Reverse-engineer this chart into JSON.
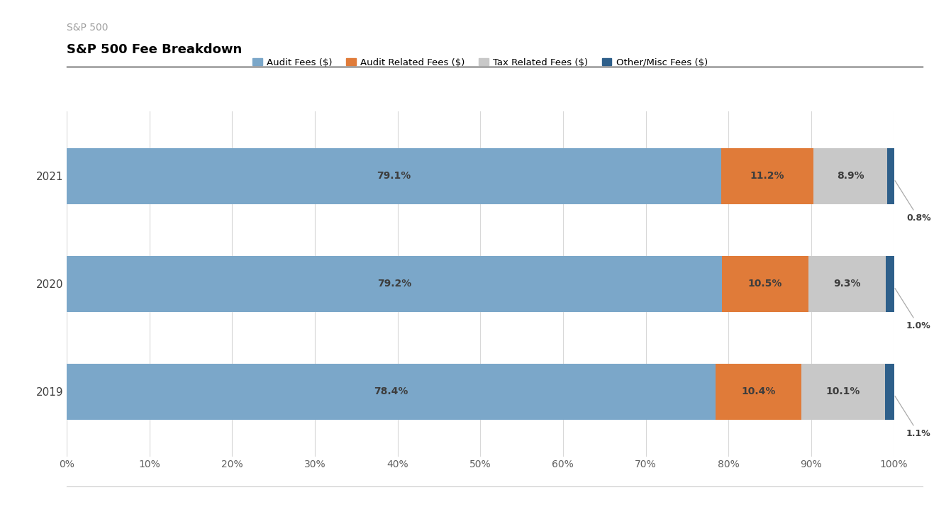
{
  "title_small": "S&P 500",
  "title_main": "S&P 500 Fee Breakdown",
  "years": [
    "2021",
    "2020",
    "2019"
  ],
  "segments": {
    "Audit Fees ($)": [
      79.1,
      79.2,
      78.4
    ],
    "Audit Related Fees ($)": [
      11.2,
      10.5,
      10.4
    ],
    "Tax Related Fees ($)": [
      8.9,
      9.3,
      10.1
    ],
    "Other/Misc Fees ($)": [
      0.8,
      1.0,
      1.1
    ]
  },
  "colors": {
    "Audit Fees ($)": "#7BA7C9",
    "Audit Related Fees ($)": "#E07B39",
    "Tax Related Fees ($)": "#C8C8C8",
    "Other/Misc Fees ($)": "#2E5F8A"
  },
  "background_color": "#FFFFFF",
  "bar_height": 0.52,
  "title_small_color": "#A0A0A0",
  "title_main_color": "#000000",
  "annotation_outside_color": "#404040",
  "label_in_bar_color": "#3D3D3D",
  "xlabel_ticks": [
    0,
    10,
    20,
    30,
    40,
    50,
    60,
    70,
    80,
    90,
    100
  ]
}
